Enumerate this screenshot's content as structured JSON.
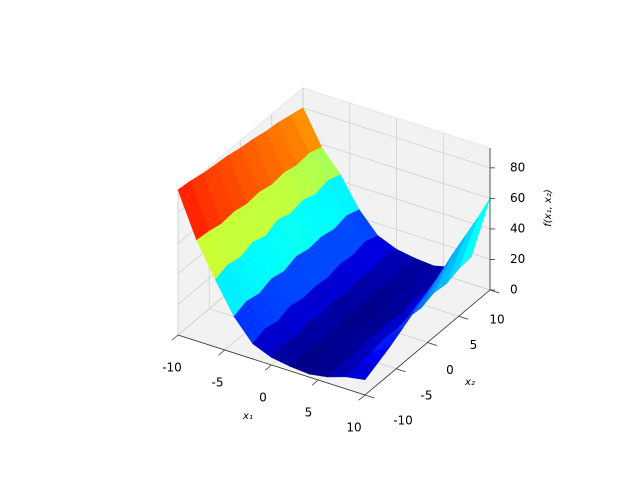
{
  "chart_data": {
    "type": "surface",
    "xlabel": "x₁",
    "ylabel": "x₂",
    "zlabel": "f(x₁, x₂)",
    "colormap": "jet",
    "pane_color": "#f2f2f2",
    "grid": true,
    "xlim": [
      -10,
      10
    ],
    "ylim": [
      -10,
      10
    ],
    "zlim": [
      0,
      93
    ],
    "xticks": [
      -10,
      -5,
      0,
      5,
      10
    ],
    "yticks": [
      -10,
      -5,
      0,
      5,
      10
    ],
    "zticks": [
      0,
      20,
      40,
      60,
      80
    ],
    "x": [
      -10,
      -8,
      -6,
      -4,
      -2,
      0,
      2,
      4,
      6,
      8,
      10
    ],
    "y": [
      -10,
      -8,
      -6,
      -4,
      -2,
      0,
      2,
      4,
      6,
      8,
      10
    ],
    "z": [
      [
        95,
        66,
        44,
        24,
        10,
        5,
        3,
        2,
        4,
        8,
        10
      ],
      [
        94,
        65,
        47,
        27,
        13,
        7,
        4,
        3,
        5,
        9,
        14
      ],
      [
        92,
        63,
        45,
        25,
        11,
        5,
        3,
        2,
        4,
        10,
        18
      ],
      [
        91,
        64,
        48,
        28,
        14,
        8,
        5,
        4,
        6,
        12,
        23
      ],
      [
        90,
        62,
        45,
        26,
        12,
        6,
        3,
        2,
        5,
        11,
        28
      ],
      [
        88,
        63,
        49,
        29,
        13,
        7,
        4,
        3,
        6,
        13,
        33
      ],
      [
        87,
        61,
        46,
        27,
        12,
        6,
        3,
        2,
        5,
        12,
        38
      ],
      [
        85,
        62,
        48,
        28,
        14,
        8,
        5,
        4,
        7,
        15,
        44
      ],
      [
        84,
        60,
        45,
        26,
        13,
        7,
        4,
        3,
        6,
        14,
        49
      ],
      [
        82,
        61,
        47,
        28,
        15,
        9,
        6,
        5,
        8,
        17,
        54
      ],
      [
        80,
        58,
        44,
        25,
        12,
        7,
        5,
        4,
        7,
        18,
        60
      ]
    ]
  }
}
